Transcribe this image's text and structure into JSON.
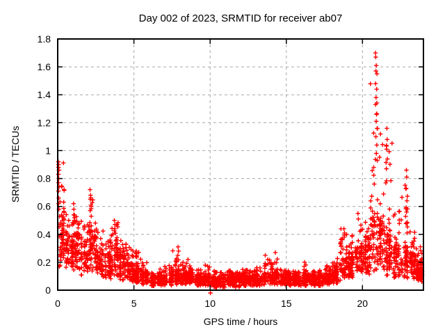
{
  "chart_data": {
    "type": "scatter",
    "title": "Day 002 of 2023, SRMTID for receiver ab07",
    "xlabel": "GPS time / hours",
    "ylabel": "SRMTID / TECUs",
    "xlim": [
      0,
      24
    ],
    "ylim": [
      0,
      1.8
    ],
    "xticks": [
      0,
      5,
      10,
      15,
      20
    ],
    "yticks": [
      0,
      0.2,
      0.4,
      0.6,
      0.8,
      1,
      1.2,
      1.4,
      1.6,
      1.8
    ],
    "grid": "dashed-both-axes",
    "legend": "none",
    "marker": {
      "shape": "plus",
      "color": "#ff0000",
      "size": 7
    },
    "colors": {
      "background": "#ffffff",
      "border": "#000000",
      "grid": "#a6a6a6",
      "text": "#000000",
      "points": "#ff0000"
    },
    "sampling_note": "dense scatter approx 30s cadence, summarized as half-hour envelope bins [t_start, y_low, y_typ_high, y_tail_max]",
    "seed": 42,
    "tmax": 23.9,
    "bin_width_hours": 0.5,
    "columns_per_bin": 14,
    "tail_prob": 0.22,
    "bins": [
      [
        0.0,
        0.15,
        0.5,
        0.93
      ],
      [
        0.5,
        0.14,
        0.38,
        0.55
      ],
      [
        1.0,
        0.14,
        0.4,
        0.62
      ],
      [
        1.5,
        0.1,
        0.33,
        0.5
      ],
      [
        2.0,
        0.12,
        0.42,
        0.72
      ],
      [
        2.5,
        0.09,
        0.28,
        0.44
      ],
      [
        3.0,
        0.08,
        0.24,
        0.36
      ],
      [
        3.5,
        0.09,
        0.32,
        0.5
      ],
      [
        4.0,
        0.07,
        0.24,
        0.36
      ],
      [
        4.5,
        0.06,
        0.19,
        0.32
      ],
      [
        5.0,
        0.05,
        0.16,
        0.3
      ],
      [
        5.5,
        0.04,
        0.12,
        0.2
      ],
      [
        6.0,
        0.03,
        0.1,
        0.15
      ],
      [
        6.5,
        0.03,
        0.1,
        0.16
      ],
      [
        7.0,
        0.03,
        0.11,
        0.18
      ],
      [
        7.5,
        0.04,
        0.14,
        0.3
      ],
      [
        8.0,
        0.04,
        0.12,
        0.22
      ],
      [
        8.5,
        0.04,
        0.12,
        0.18
      ],
      [
        9.0,
        0.03,
        0.1,
        0.15
      ],
      [
        9.5,
        0.03,
        0.11,
        0.2
      ],
      [
        10.0,
        0.02,
        0.09,
        0.15
      ],
      [
        10.5,
        0.02,
        0.09,
        0.13
      ],
      [
        11.0,
        0.03,
        0.1,
        0.15
      ],
      [
        11.5,
        0.02,
        0.09,
        0.13
      ],
      [
        12.0,
        0.03,
        0.1,
        0.15
      ],
      [
        12.5,
        0.03,
        0.1,
        0.14
      ],
      [
        13.0,
        0.03,
        0.1,
        0.17
      ],
      [
        13.5,
        0.04,
        0.12,
        0.25
      ],
      [
        14.0,
        0.04,
        0.13,
        0.27
      ],
      [
        14.5,
        0.03,
        0.1,
        0.15
      ],
      [
        15.0,
        0.03,
        0.1,
        0.14
      ],
      [
        15.5,
        0.03,
        0.1,
        0.15
      ],
      [
        16.0,
        0.03,
        0.11,
        0.2
      ],
      [
        16.5,
        0.03,
        0.1,
        0.14
      ],
      [
        17.0,
        0.03,
        0.1,
        0.15
      ],
      [
        17.5,
        0.04,
        0.11,
        0.18
      ],
      [
        18.0,
        0.05,
        0.14,
        0.25
      ],
      [
        18.5,
        0.07,
        0.22,
        0.44
      ],
      [
        19.0,
        0.08,
        0.24,
        0.4
      ],
      [
        19.5,
        0.1,
        0.3,
        0.55
      ],
      [
        20.0,
        0.1,
        0.32,
        0.5
      ],
      [
        20.5,
        0.13,
        0.55,
        1.55
      ],
      [
        21.0,
        0.13,
        0.5,
        1.3
      ],
      [
        21.5,
        0.1,
        0.4,
        1.1
      ],
      [
        22.0,
        0.08,
        0.3,
        0.62
      ],
      [
        22.5,
        0.08,
        0.3,
        0.8
      ],
      [
        23.0,
        0.08,
        0.26,
        0.42
      ],
      [
        23.5,
        0.06,
        0.2,
        0.33
      ]
    ],
    "extra_points": [
      [
        0.04,
        0.92
      ],
      [
        0.06,
        0.9
      ],
      [
        0.05,
        0.88
      ],
      [
        0.08,
        0.86
      ],
      [
        0.05,
        0.83
      ],
      [
        0.07,
        0.8
      ],
      [
        0.06,
        0.77
      ],
      [
        0.09,
        0.74
      ],
      [
        0.05,
        0.71
      ],
      [
        0.07,
        0.66
      ],
      [
        0.06,
        0.62
      ],
      [
        0.08,
        0.58
      ],
      [
        0.72,
        0.5
      ],
      [
        0.75,
        0.46
      ],
      [
        1.04,
        0.62
      ],
      [
        1.06,
        0.58
      ],
      [
        1.05,
        0.54
      ],
      [
        1.08,
        0.5
      ],
      [
        2.12,
        0.72
      ],
      [
        2.16,
        0.68
      ],
      [
        2.14,
        0.65
      ],
      [
        2.18,
        0.61
      ],
      [
        2.13,
        0.57
      ],
      [
        2.2,
        0.53
      ],
      [
        3.72,
        0.5
      ],
      [
        3.76,
        0.47
      ],
      [
        3.74,
        0.44
      ],
      [
        5.15,
        0.28
      ],
      [
        7.9,
        0.31
      ],
      [
        7.93,
        0.28
      ],
      [
        7.88,
        0.25
      ],
      [
        8.55,
        0.22
      ],
      [
        10.02,
        -0.02
      ],
      [
        13.62,
        0.25
      ],
      [
        14.28,
        0.27
      ],
      [
        16.2,
        0.2
      ],
      [
        18.78,
        0.44
      ],
      [
        18.82,
        0.41
      ],
      [
        18.8,
        0.38
      ],
      [
        19.7,
        0.55
      ],
      [
        19.73,
        0.51
      ],
      [
        20.85,
        1.7
      ],
      [
        20.87,
        1.67
      ],
      [
        20.9,
        1.61
      ],
      [
        20.88,
        1.57
      ],
      [
        20.95,
        1.55
      ],
      [
        20.86,
        1.48
      ],
      [
        20.93,
        1.44
      ],
      [
        20.89,
        1.38
      ],
      [
        20.86,
        1.33
      ],
      [
        20.92,
        1.26
      ],
      [
        20.9,
        1.21
      ],
      [
        20.96,
        1.16
      ],
      [
        20.88,
        1.1
      ],
      [
        20.94,
        1.04
      ],
      [
        20.91,
        0.98
      ],
      [
        20.97,
        0.93
      ],
      [
        21.6,
        1.16
      ],
      [
        21.62,
        1.08
      ],
      [
        21.58,
        1.01
      ],
      [
        21.63,
        0.94
      ],
      [
        21.57,
        0.87
      ],
      [
        22.88,
        0.86
      ],
      [
        22.9,
        0.81
      ],
      [
        22.87,
        0.73
      ],
      [
        22.92,
        0.64
      ],
      [
        22.89,
        0.56
      ],
      [
        22.91,
        0.48
      ],
      [
        22.93,
        0.41
      ],
      [
        23.3,
        0.33
      ]
    ]
  }
}
